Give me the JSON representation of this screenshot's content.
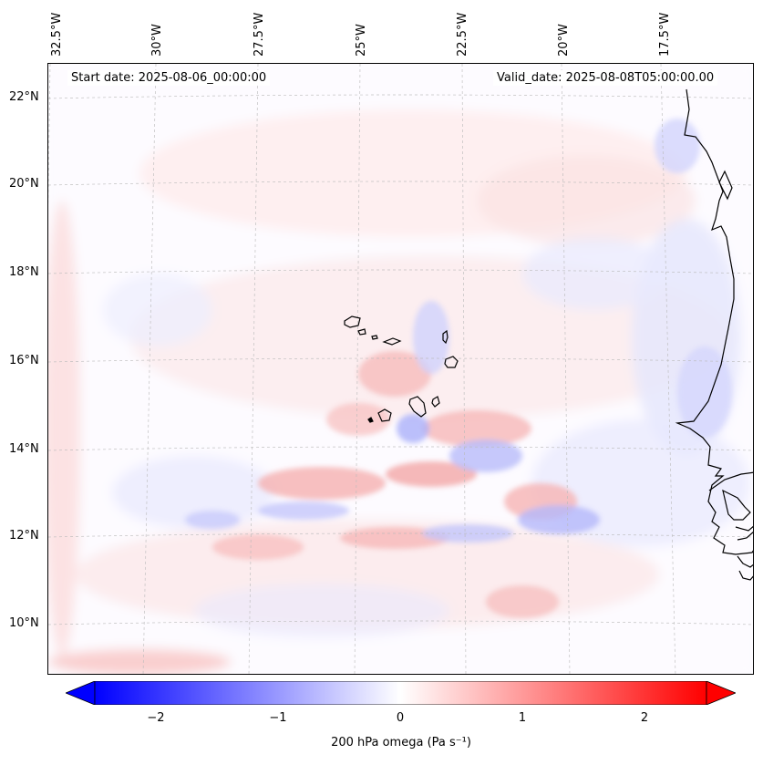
{
  "header": {
    "start_date": "Start date: 2025-08-06_00:00:00",
    "valid_date": "Valid_date: 2025-08-08T05:00:00.00"
  },
  "axes": {
    "lon_labels": [
      "32.5°W",
      "30°W",
      "27.5°W",
      "25°W",
      "22.5°W",
      "20°W",
      "17.5°W"
    ],
    "lat_labels": [
      "22°N",
      "20°N",
      "18°N",
      "16°N",
      "14°N",
      "12°N",
      "10°N"
    ]
  },
  "colorbar": {
    "ticks": [
      "−2",
      "−1",
      "0",
      "1",
      "2"
    ],
    "tick_values": [
      -2,
      -1,
      0,
      1,
      2
    ],
    "range": [
      -2.5,
      2.5
    ],
    "label": "200 hPa omega (Pa s⁻¹)",
    "colormap": "bwr",
    "min_color": "#0000ff",
    "mid_color": "#ffffff",
    "max_color": "#ff0000"
  },
  "map": {
    "coastline_color": "#000000",
    "gridline_color": "#bbbbbb",
    "gridlines": true,
    "projection": "Lambert conformal",
    "extent_lon": [
      -33,
      -15.5
    ],
    "extent_lat": [
      9,
      23
    ]
  }
}
